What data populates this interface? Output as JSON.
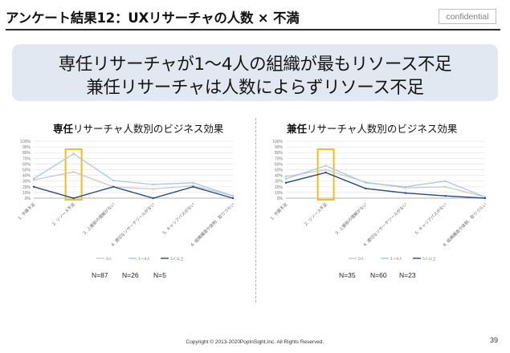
{
  "header": {
    "title": "アンケート結果12：UXリサーチャの人数 × 不満",
    "badge": "confidential"
  },
  "banner": {
    "line1": "専任リサーチャが1〜4人の組織が最もリソース不足",
    "line2": "兼任リサーチャは人数によらずリソース不足"
  },
  "chart_data": [
    {
      "type": "line",
      "title_bold": "専任",
      "title_rest": "リサーチャ人数別のビジネス効果",
      "categories": [
        "1. 予算不足",
        "2. リソース不足",
        "3. 上層部の理解がない",
        "4. 適切なリサーチツールがない",
        "5. キャリアパスがない",
        "6. 組織構造や体制、取りづらい"
      ],
      "y_ticks": [
        "0%",
        "10%",
        "20%",
        "30%",
        "40%",
        "50%",
        "60%",
        "70%",
        "80%",
        "90%",
        "100%"
      ],
      "ylim": [
        0,
        100
      ],
      "series": [
        {
          "name": "0人",
          "color": "#c9c9c9",
          "values": [
            32,
            46,
            20,
            16,
            22,
            4
          ]
        },
        {
          "name": "1〜4人",
          "color": "#a9c8e6",
          "values": [
            34,
            78,
            31,
            24,
            27,
            4
          ]
        },
        {
          "name": "5人以上",
          "color": "#274a7d",
          "values": [
            20,
            0,
            20,
            0,
            20,
            0
          ]
        }
      ],
      "highlight_category": "2. リソース不足",
      "n_labels": [
        "N=87",
        "N=26",
        "N=5"
      ]
    },
    {
      "type": "line",
      "title_bold": "兼任",
      "title_rest": "リサーチャ人数別のビジネス効果",
      "categories": [
        "1. 予算不足",
        "2. リソース不足",
        "3. 上層部の理解がない",
        "4. 適切なリサーチツールがない",
        "5. キャリアパスがない",
        "6. 組織構造や体制、取りづらい"
      ],
      "y_ticks": [
        "0%",
        "10%",
        "20%",
        "30%",
        "40%",
        "50%",
        "60%",
        "70%",
        "80%",
        "90%",
        "100%"
      ],
      "ylim": [
        0,
        100
      ],
      "series": [
        {
          "name": "0人",
          "color": "#c9c9c9",
          "values": [
            38,
            50,
            28,
            18,
            20,
            2
          ]
        },
        {
          "name": "1〜4人",
          "color": "#a9c8e6",
          "values": [
            34,
            57,
            27,
            20,
            30,
            2
          ]
        },
        {
          "name": "5人以上",
          "color": "#274a7d",
          "values": [
            27,
            45,
            17,
            9,
            4,
            0
          ]
        }
      ],
      "highlight_category": "2. リソース不足",
      "n_labels": [
        "N=35",
        "N=60",
        "N=23"
      ]
    }
  ],
  "footer": {
    "copyright": "Copyright © 2013-2020PopInSight,Inc.  All Rights Reserved.",
    "page": "39"
  }
}
